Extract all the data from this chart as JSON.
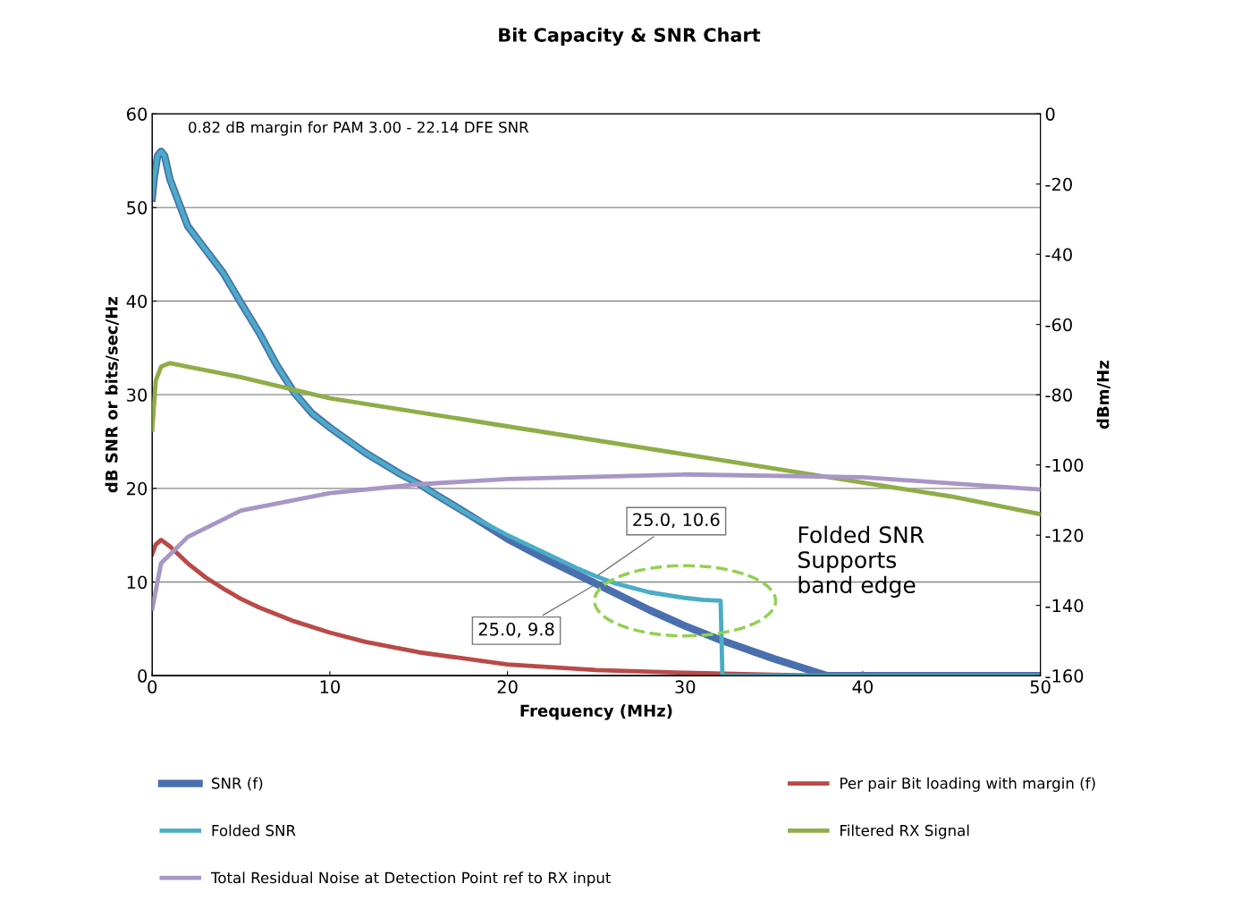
{
  "chart_data": {
    "type": "line",
    "title": "Bit Capacity & SNR Chart",
    "xlabel": "Frequency (MHz)",
    "ylabel": "dB SNR or bits/sec/Hz",
    "y2label": "dBm/Hz",
    "xlim": [
      0,
      50
    ],
    "xticks": [
      0,
      10,
      20,
      30,
      40,
      50
    ],
    "ylim": [
      0,
      60
    ],
    "yticks": [
      0,
      10,
      20,
      30,
      40,
      50,
      60
    ],
    "y2lim": [
      -160,
      0
    ],
    "y2ticks": [
      -160,
      -140,
      -120,
      -100,
      -80,
      -60,
      -40,
      -20,
      0
    ],
    "grid": "y",
    "legend": "bottom",
    "line_style": "solid",
    "marker": "none",
    "series": [
      {
        "name": "SNR (f)",
        "color": "#4a6fae",
        "x": [
          0,
          0.1,
          0.3,
          0.5,
          0.7,
          1,
          2,
          3,
          4,
          5,
          6,
          7,
          8,
          9,
          10,
          12,
          14,
          15,
          16,
          18,
          20,
          22,
          25,
          28,
          30,
          32,
          35,
          38,
          50
        ],
        "values": [
          51,
          53,
          55.5,
          56,
          55.5,
          53,
          48,
          45.5,
          43,
          39.8,
          36.7,
          33.2,
          30.2,
          28,
          26.5,
          23.8,
          21.5,
          20.5,
          19.3,
          17,
          14.6,
          12.6,
          9.8,
          7,
          5.3,
          3.8,
          1.8,
          0,
          0
        ]
      },
      {
        "name": "Per pair Bit loading with margin (f)",
        "color": "#b94a48",
        "x": [
          0,
          0.2,
          0.5,
          1,
          2,
          3,
          4,
          5,
          6,
          8,
          10,
          12,
          15,
          20,
          25,
          30,
          35,
          38,
          50
        ],
        "values": [
          13,
          14,
          14.5,
          13.8,
          12,
          10.5,
          9.3,
          8.2,
          7.3,
          5.8,
          4.6,
          3.6,
          2.5,
          1.2,
          0.6,
          0.3,
          0.1,
          0,
          0
        ]
      },
      {
        "name": "Folded SNR",
        "color": "#4bacc6",
        "x": [
          0,
          0.1,
          0.3,
          0.5,
          0.7,
          1,
          2,
          3,
          4,
          5,
          6,
          7,
          8,
          9,
          10,
          12,
          14,
          15,
          16,
          18,
          20,
          22,
          24,
          25,
          26,
          28,
          30,
          31,
          32,
          32.1,
          50
        ],
        "values": [
          51,
          53,
          55.5,
          56,
          55.5,
          53,
          48,
          45.5,
          43,
          39.8,
          36.7,
          33.2,
          30.2,
          28,
          26.5,
          23.8,
          21.5,
          20.5,
          19.3,
          17,
          15,
          13.2,
          11.4,
          10.6,
          9.9,
          8.9,
          8.3,
          8.1,
          8,
          0,
          0
        ]
      },
      {
        "name": "Filtered RX Signal",
        "color": "#8fad48",
        "axis": "y2",
        "x": [
          0,
          0.2,
          0.5,
          1,
          2,
          5,
          10,
          20,
          30,
          40,
          45,
          50
        ],
        "values": [
          -90,
          -76,
          -72,
          -71,
          -72,
          -75,
          -81,
          -89,
          -97,
          -105,
          -109,
          -114
        ]
      },
      {
        "name": "Total Residual Noise at Detection Point ref to RX input",
        "color": "#a896c6",
        "axis": "y2",
        "x": [
          0,
          0.5,
          2,
          5,
          10,
          15,
          20,
          30,
          40,
          50
        ],
        "values": [
          -141,
          -128,
          -120.5,
          -113,
          -108,
          -105.5,
          -104,
          -102.7,
          -103.5,
          -107
        ]
      }
    ],
    "annotations": [
      "0.82 dB margin for PAM 3.00 - 22.14 DFE SNR",
      {
        "text": "25.0, 10.6",
        "x": 25,
        "y": 10.6
      },
      {
        "text": "25.0, 9.8",
        "x": 25,
        "y": 9.8
      },
      "Folded SNR\nSupports\nband edge"
    ]
  }
}
